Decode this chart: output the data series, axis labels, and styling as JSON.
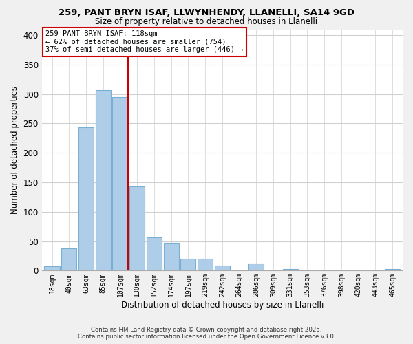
{
  "title1": "259, PANT BRYN ISAF, LLWYNHENDY, LLANELLI, SA14 9GD",
  "title2": "Size of property relative to detached houses in Llanelli",
  "xlabel": "Distribution of detached houses by size in Llanelli",
  "ylabel": "Number of detached properties",
  "bar_labels": [
    "18sqm",
    "40sqm",
    "63sqm",
    "85sqm",
    "107sqm",
    "130sqm",
    "152sqm",
    "174sqm",
    "197sqm",
    "219sqm",
    "242sqm",
    "264sqm",
    "286sqm",
    "309sqm",
    "331sqm",
    "353sqm",
    "376sqm",
    "398sqm",
    "420sqm",
    "443sqm",
    "465sqm"
  ],
  "bar_values": [
    8,
    38,
    243,
    307,
    295,
    143,
    57,
    47,
    20,
    20,
    9,
    0,
    12,
    0,
    3,
    1,
    1,
    0,
    0,
    0,
    3
  ],
  "bar_color": "#aecde8",
  "bar_edge_color": "#7aafd4",
  "vline_x_idx": 4,
  "vline_color": "#cc0000",
  "ylim": [
    0,
    410
  ],
  "yticks": [
    0,
    50,
    100,
    150,
    200,
    250,
    300,
    350,
    400
  ],
  "annotation_line1": "259 PANT BRYN ISAF: 118sqm",
  "annotation_line2": "← 62% of detached houses are smaller (754)",
  "annotation_line3": "37% of semi-detached houses are larger (446) →",
  "footer1": "Contains HM Land Registry data © Crown copyright and database right 2025.",
  "footer2": "Contains public sector information licensed under the Open Government Licence v3.0.",
  "bg_color": "#f0f0f0",
  "plot_bg_color": "#ffffff",
  "grid_color": "#d0d0d0"
}
